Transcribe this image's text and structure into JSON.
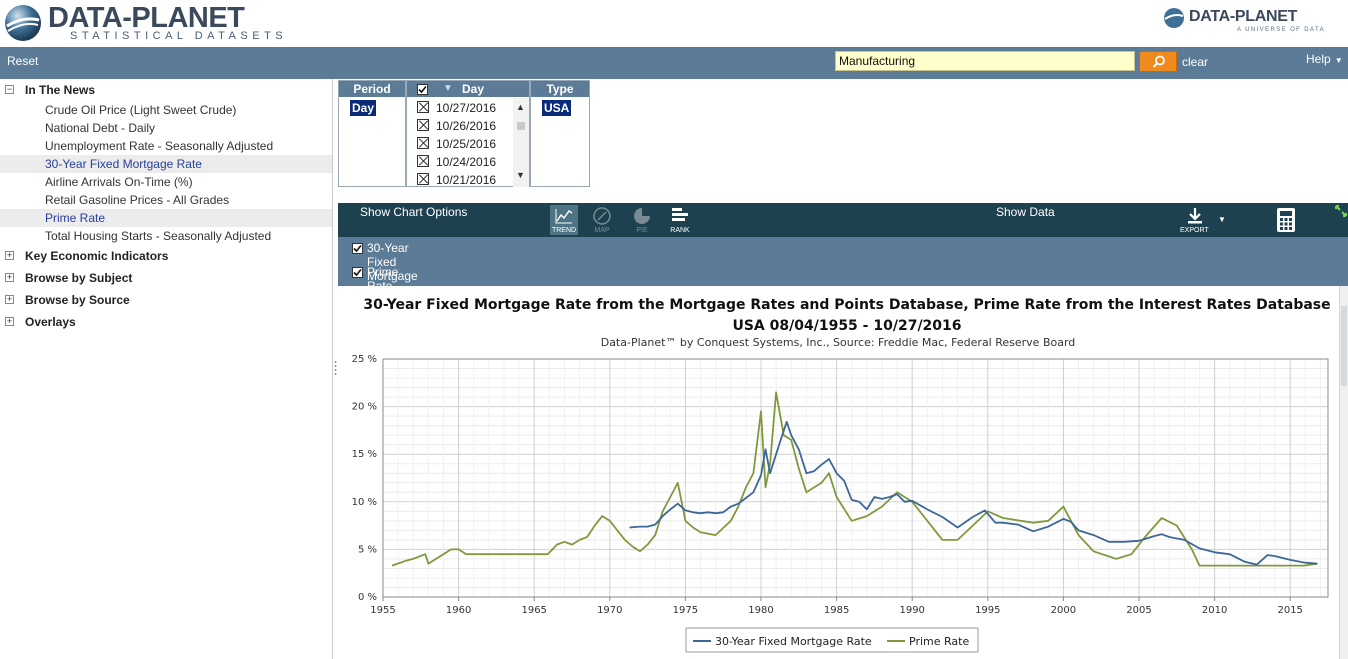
{
  "header": {
    "logo_left_brand": "DATA-PLANET",
    "logo_left_tag": "STATISTICAL DATASETS",
    "logo_right_brand": "DATA-PLANET",
    "logo_right_tag": "A UNIVERSE OF DATA"
  },
  "toolbar": {
    "reset_label": "Reset",
    "search_value": "Manufacturing",
    "clear_label": "clear",
    "help_label": "Help"
  },
  "sidebar": {
    "in_the_news": {
      "label": "In The News",
      "toggle": "−",
      "items": [
        {
          "label": "Crude Oil Price (Light Sweet Crude)"
        },
        {
          "label": "National Debt - Daily"
        },
        {
          "label": "Unemployment Rate - Seasonally Adjusted"
        },
        {
          "label": "30-Year Fixed Mortgage Rate"
        },
        {
          "label": "Airline Arrivals On-Time (%)"
        },
        {
          "label": "Retail Gasoline Prices - All Grades"
        },
        {
          "label": "Prime Rate"
        },
        {
          "label": "Total Housing Starts - Seasonally Adjusted"
        }
      ]
    },
    "groups": [
      {
        "label": "Key Economic Indicators",
        "toggle": "+"
      },
      {
        "label": "Browse by Subject",
        "toggle": "+"
      },
      {
        "label": "Browse by Source",
        "toggle": "+"
      },
      {
        "label": "Overlays",
        "toggle": "+"
      }
    ]
  },
  "filters": {
    "period_header": "Period",
    "period_selected": "Day",
    "day_header": "Day",
    "days": [
      "10/27/2016",
      "10/26/2016",
      "10/25/2016",
      "10/24/2016",
      "10/21/2016"
    ],
    "type_header": "Type",
    "type_selected": "USA"
  },
  "chart_toolbar": {
    "show_chart_options": "Show Chart Options",
    "trend": "TREND",
    "map": "MAP",
    "pie": "PIE",
    "rank": "RANK",
    "show_data": "Show Data",
    "export": "EXPORT"
  },
  "series_toggles": [
    {
      "label": "30-Year Fixed Mortgage Rate",
      "checked": true
    },
    {
      "label": "Prime Rate",
      "checked": true
    }
  ],
  "colors": {
    "mortgage": "#3d6799",
    "prime": "#7f9a3c",
    "toolbar": "#5b7b96",
    "chart_toolbar": "#1e4150",
    "search_button": "#f08a1c"
  },
  "chart_data": {
    "type": "line",
    "title": "30-Year Fixed Mortgage Rate from the Mortgage Rates and Points Database, Prime Rate from the Interest Rates Database",
    "subtitle": "USA 08/04/1955 - 10/27/2016",
    "source": "Data-Planet™ by Conquest Systems, Inc., Source: Freddie Mac, Federal Reserve Board",
    "xlabel": "",
    "ylabel": "",
    "xlim": [
      1955,
      2017.5
    ],
    "ylim": [
      0,
      25
    ],
    "x_ticks": [
      "1955",
      "1960",
      "1965",
      "1970",
      "1975",
      "1980",
      "1985",
      "1990",
      "1995",
      "2000",
      "2005",
      "2010",
      "2015"
    ],
    "y_ticks": [
      "0 %",
      "5 %",
      "10 %",
      "15 %",
      "20 %",
      "25 %"
    ],
    "grid": true,
    "legend_position": "bottom-center",
    "series": [
      {
        "name": "30-Year Fixed Mortgage Rate",
        "x": [
          1971.3,
          1972.0,
          1972.5,
          1973.0,
          1973.5,
          1974.0,
          1974.5,
          1975.0,
          1975.5,
          1976.0,
          1976.5,
          1977.0,
          1977.5,
          1978.0,
          1978.5,
          1979.0,
          1979.5,
          1980.0,
          1980.3,
          1980.6,
          1981.0,
          1981.3,
          1981.7,
          1982.0,
          1982.5,
          1983.0,
          1983.5,
          1984.0,
          1984.5,
          1985.0,
          1985.5,
          1986.0,
          1986.5,
          1987.0,
          1987.5,
          1988.0,
          1988.5,
          1989.0,
          1989.5,
          1990.0,
          1991.0,
          1992.0,
          1993.0,
          1994.0,
          1994.8,
          1995.5,
          1996.0,
          1997.0,
          1998.0,
          1999.0,
          2000.0,
          2000.5,
          2001.0,
          2002.0,
          2003.0,
          2004.0,
          2005.0,
          2006.0,
          2006.5,
          2007.0,
          2008.0,
          2009.0,
          2010.0,
          2011.0,
          2012.0,
          2012.8,
          2013.5,
          2014.0,
          2015.0,
          2016.0,
          2016.8
        ],
        "values": [
          7.3,
          7.4,
          7.4,
          7.6,
          8.5,
          9.2,
          9.8,
          9.1,
          8.9,
          8.8,
          8.9,
          8.8,
          8.9,
          9.5,
          9.8,
          10.4,
          11.0,
          12.8,
          15.5,
          13.0,
          15.0,
          16.5,
          18.4,
          17.0,
          15.5,
          13.0,
          13.2,
          13.9,
          14.5,
          13.0,
          12.2,
          10.2,
          10.0,
          9.2,
          10.5,
          10.3,
          10.5,
          10.8,
          10.0,
          10.1,
          9.2,
          8.4,
          7.3,
          8.4,
          9.1,
          7.8,
          7.8,
          7.6,
          6.9,
          7.4,
          8.2,
          7.9,
          7.0,
          6.5,
          5.8,
          5.8,
          5.9,
          6.4,
          6.6,
          6.3,
          6.0,
          5.1,
          4.7,
          4.5,
          3.7,
          3.4,
          4.4,
          4.3,
          3.9,
          3.6,
          3.5
        ]
      },
      {
        "name": "Prime Rate",
        "x": [
          1955.6,
          1956.5,
          1957.0,
          1957.8,
          1958.0,
          1958.5,
          1959.0,
          1959.5,
          1960.0,
          1960.5,
          1961.0,
          1964.0,
          1965.9,
          1966.5,
          1967.0,
          1967.5,
          1968.0,
          1968.5,
          1969.0,
          1969.5,
          1970.0,
          1970.5,
          1971.0,
          1971.5,
          1972.0,
          1972.5,
          1973.0,
          1973.5,
          1974.0,
          1974.5,
          1975.0,
          1975.5,
          1976.0,
          1977.0,
          1978.0,
          1978.5,
          1979.0,
          1979.5,
          1980.0,
          1980.3,
          1980.6,
          1981.0,
          1981.5,
          1982.0,
          1982.5,
          1983.0,
          1984.0,
          1984.5,
          1985.0,
          1986.0,
          1987.0,
          1988.0,
          1989.0,
          1990.0,
          1991.0,
          1992.0,
          1993.0,
          1994.0,
          1995.0,
          1996.0,
          1998.0,
          1999.0,
          2000.0,
          2001.0,
          2002.0,
          2003.5,
          2004.5,
          2005.5,
          2006.5,
          2007.5,
          2008.5,
          2009.0,
          2015.9,
          2016.8
        ],
        "values": [
          3.3,
          3.8,
          4.0,
          4.5,
          3.5,
          4.0,
          4.5,
          5.0,
          5.0,
          4.5,
          4.5,
          4.5,
          4.5,
          5.5,
          5.8,
          5.5,
          6.0,
          6.3,
          7.5,
          8.5,
          8.0,
          7.0,
          6.0,
          5.3,
          4.8,
          5.5,
          6.5,
          9.0,
          10.5,
          12.0,
          8.0,
          7.3,
          6.8,
          6.5,
          8.0,
          9.5,
          11.5,
          13.0,
          19.5,
          11.5,
          14.0,
          21.5,
          17.0,
          16.5,
          13.5,
          11.0,
          12.0,
          13.0,
          10.5,
          8.0,
          8.5,
          9.5,
          11.0,
          10.0,
          8.0,
          6.0,
          6.0,
          7.5,
          9.0,
          8.3,
          7.8,
          8.0,
          9.5,
          6.5,
          4.8,
          4.0,
          4.5,
          6.5,
          8.3,
          7.5,
          5.0,
          3.3,
          3.3,
          3.5
        ]
      }
    ]
  }
}
